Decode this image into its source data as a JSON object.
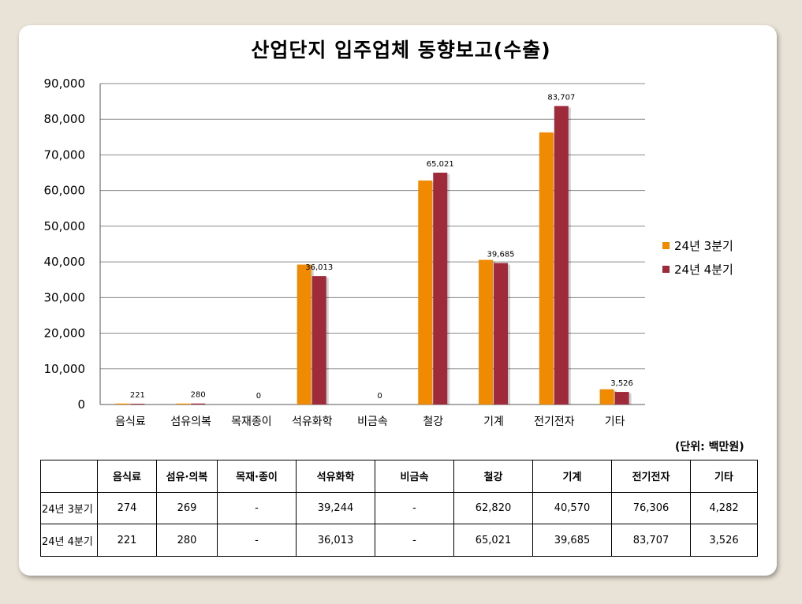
{
  "chart_data": {
    "type": "bar",
    "title": "산업단지 입주업체 동향보고(수출)",
    "unit": "(단위: 백만원)",
    "categories": [
      "음식료",
      "섬유의복",
      "목재종이",
      "석유화학",
      "비금속",
      "철강",
      "기계",
      "전기전자",
      "기타"
    ],
    "series": [
      {
        "name": "24년 3분기",
        "color": "#f08a00",
        "values": [
          274,
          269,
          0,
          39244,
          0,
          62820,
          40570,
          76306,
          4282
        ]
      },
      {
        "name": "24년 4분기",
        "color": "#9e2a3a",
        "values": [
          221,
          280,
          0,
          36013,
          0,
          65021,
          39685,
          83707,
          3526
        ]
      }
    ],
    "data_labels": [
      "221",
      "280",
      "0",
      "36,013",
      "0",
      "65,021",
      "39,685",
      "83,707",
      "3,526"
    ],
    "yticks": [
      "0",
      "10,000",
      "20,000",
      "30,000",
      "40,000",
      "50,000",
      "60,000",
      "70,000",
      "80,000",
      "90,000"
    ],
    "ylim": [
      0,
      90000
    ],
    "grid": true,
    "legend_position": "right"
  },
  "table": {
    "headers": [
      "",
      "음식료",
      "섬유·의복",
      "목재·종이",
      "석유화학",
      "비금속",
      "철강",
      "기계",
      "전기전자",
      "기타"
    ],
    "rows": [
      {
        "label": "24년 3분기",
        "cells": [
          "274",
          "269",
          "-",
          "39,244",
          "-",
          "62,820",
          "40,570",
          "76,306",
          "4,282"
        ]
      },
      {
        "label": "24년 4분기",
        "cells": [
          "221",
          "280",
          "-",
          "36,013",
          "-",
          "65,021",
          "39,685",
          "83,707",
          "3,526"
        ]
      }
    ]
  }
}
